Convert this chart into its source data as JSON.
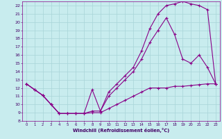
{
  "xlabel": "Windchill (Refroidissement éolien,°C)",
  "background_color": "#c8ecee",
  "grid_color": "#a8d4d8",
  "line_color": "#880088",
  "xlim": [
    -0.5,
    23.5
  ],
  "ylim": [
    8,
    22.5
  ],
  "xticks": [
    0,
    1,
    2,
    3,
    4,
    5,
    6,
    7,
    8,
    9,
    10,
    11,
    12,
    13,
    14,
    15,
    16,
    17,
    18,
    19,
    20,
    21,
    22,
    23
  ],
  "yticks": [
    8,
    9,
    10,
    11,
    12,
    13,
    14,
    15,
    16,
    17,
    18,
    19,
    20,
    21,
    22
  ],
  "line1_x": [
    0,
    1,
    2,
    3,
    4,
    5,
    6,
    7,
    8,
    9,
    10,
    11,
    12,
    13,
    14,
    15,
    16,
    17,
    18,
    19,
    20,
    21,
    22,
    23
  ],
  "line1_y": [
    12.5,
    11.8,
    11.1,
    10.0,
    8.9,
    8.9,
    8.9,
    8.9,
    9.0,
    9.0,
    9.5,
    10.0,
    10.5,
    11.0,
    11.5,
    12.0,
    12.0,
    12.0,
    12.2,
    12.2,
    12.3,
    12.4,
    12.5,
    12.5
  ],
  "line2_x": [
    0,
    1,
    2,
    3,
    4,
    5,
    6,
    7,
    8,
    9,
    10,
    11,
    12,
    13,
    14,
    15,
    16,
    17,
    18,
    19,
    20,
    21,
    22,
    23
  ],
  "line2_y": [
    12.5,
    11.8,
    11.1,
    10.0,
    8.9,
    8.9,
    8.9,
    8.9,
    11.8,
    9.2,
    11.5,
    12.5,
    13.5,
    14.5,
    16.5,
    19.2,
    21.0,
    22.0,
    22.2,
    22.5,
    22.2,
    22.0,
    21.5,
    12.5
  ],
  "line3_x": [
    0,
    1,
    2,
    3,
    4,
    5,
    6,
    7,
    8,
    9,
    10,
    11,
    12,
    13,
    14,
    15,
    16,
    17,
    18,
    19,
    20,
    21,
    22,
    23
  ],
  "line3_y": [
    12.5,
    11.8,
    11.1,
    10.0,
    8.9,
    8.9,
    8.9,
    8.9,
    9.2,
    9.2,
    11.0,
    12.0,
    13.0,
    14.0,
    15.5,
    17.5,
    19.0,
    20.5,
    18.5,
    15.5,
    15.0,
    16.0,
    14.5,
    12.5
  ]
}
